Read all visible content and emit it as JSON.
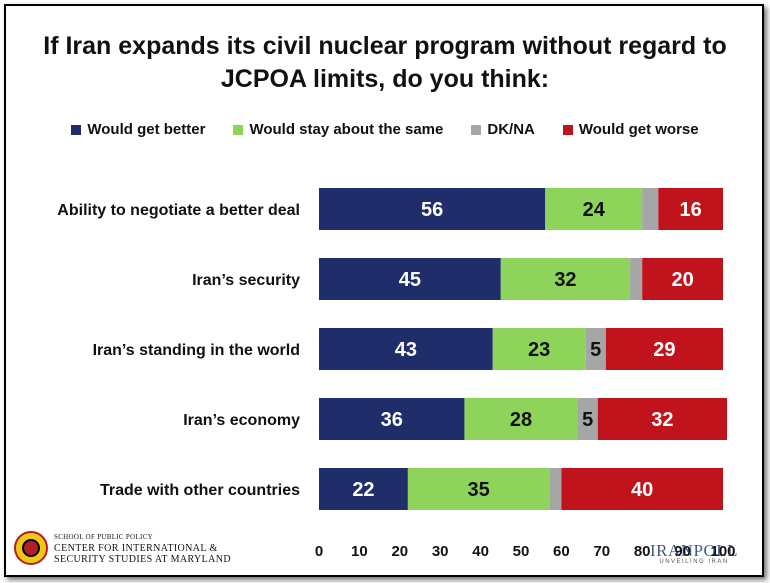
{
  "chart_data": {
    "type": "bar",
    "orientation": "horizontal",
    "stacked": true,
    "title": "If Iran expands its civil nuclear program without regard to JCPOA limits, do you think:",
    "title_lines": [
      "If Iran expands its civil nuclear program without regard to",
      "JCPOA limits, do you think:"
    ],
    "categories": [
      "Ability to negotiate a better deal",
      "Iran’s security",
      "Iran’s standing in the world",
      "Iran’s economy",
      "Trade with other countries"
    ],
    "series": [
      {
        "name": "Would get better",
        "color": "#1f2d6b",
        "values": [
          56,
          45,
          43,
          36,
          22
        ],
        "labels": [
          "56",
          "45",
          "43",
          "36",
          "22"
        ]
      },
      {
        "name": "Would stay about the same",
        "color": "#8fd45a",
        "values": [
          24,
          32,
          23,
          28,
          35
        ],
        "labels": [
          "24",
          "32",
          "23",
          "28",
          "35"
        ]
      },
      {
        "name": "DK/NA",
        "color": "#a6a6a6",
        "values": [
          4,
          3,
          5,
          5,
          3
        ],
        "labels": [
          "",
          "",
          "5",
          "5",
          ""
        ]
      },
      {
        "name": "Would get worse",
        "color": "#c0131b",
        "values": [
          16,
          20,
          29,
          32,
          40
        ],
        "labels": [
          "16",
          "20",
          "29",
          "32",
          "40"
        ]
      }
    ],
    "xlim": [
      0,
      100
    ],
    "xticks": [
      "0",
      "10",
      "20",
      "30",
      "40",
      "50",
      "60",
      "70",
      "80",
      "90",
      "100"
    ],
    "grid": false,
    "legend_position": "top"
  },
  "logos": {
    "left_line1": "SCHOOL OF PUBLIC POLICY",
    "left_line2": "CENTER FOR INTERNATIONAL &",
    "left_line3": "SECURITY STUDIES AT MARYLAND",
    "right_name": "IRANPOLL",
    "right_tagline": "UNVEILING IRAN"
  }
}
